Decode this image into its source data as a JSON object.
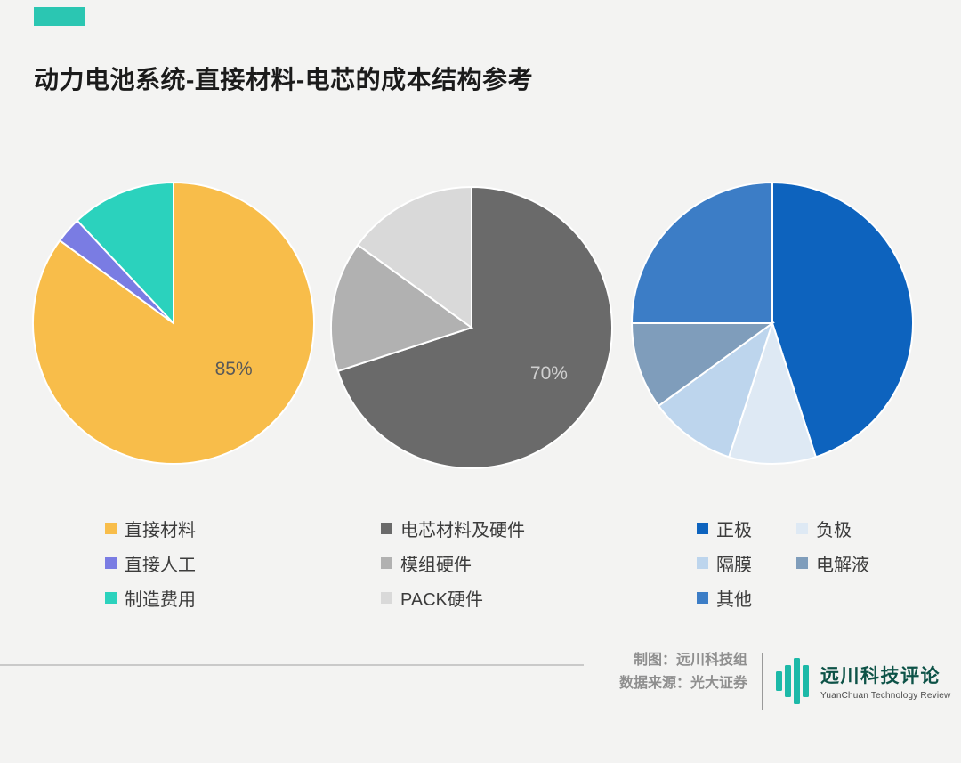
{
  "page": {
    "title": "动力电池系统-直接材料-电芯的成本结构参考",
    "accent_color": "#2BC6B2",
    "background_color": "#F3F3F2"
  },
  "chart_data": [
    {
      "type": "pie",
      "labels": [
        "直接材料",
        "直接人工",
        "制造费用"
      ],
      "values": [
        85,
        3,
        12
      ],
      "colors": [
        "#F8BD4A",
        "#7A7CE3",
        "#2BD2BD"
      ],
      "data_label": "85%",
      "legend_position": "bottom",
      "legend_columns": 1
    },
    {
      "type": "pie",
      "labels": [
        "电芯材料及硬件",
        "模组硬件",
        "PACK硬件"
      ],
      "values": [
        70,
        15,
        15
      ],
      "colors": [
        "#6A6A6A",
        "#B1B1B1",
        "#D9D9D9"
      ],
      "data_label": "70%",
      "legend_position": "bottom",
      "legend_columns": 1
    },
    {
      "type": "pie",
      "labels": [
        "正极",
        "负极",
        "隔膜",
        "电解液",
        "其他"
      ],
      "values": [
        45,
        10,
        10,
        10,
        25
      ],
      "colors": [
        "#0D63BE",
        "#DEE9F4",
        "#BDD5ED",
        "#7F9DBB",
        "#3C7DC6"
      ],
      "legend_position": "bottom",
      "legend_columns": 2
    }
  ],
  "footer": {
    "credit_line_1": "制图：远川科技组",
    "credit_line_2": "数据来源：光大证券",
    "brand_name": "远川科技评论",
    "brand_name_en": "YuanChuan Technology Review",
    "brand_color": "#1CB9A8"
  }
}
